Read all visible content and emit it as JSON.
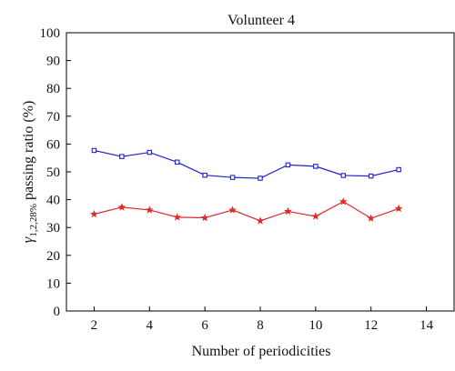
{
  "chart_data": {
    "type": "line",
    "title": "Volunteer 4",
    "xlabel": "Number of periodicities",
    "ylabel": {
      "symbol": "γ",
      "subscript": "1,2,28%",
      "text": " passing ratio (%)"
    },
    "xlim": [
      1,
      15
    ],
    "ylim": [
      0,
      100
    ],
    "xticks": [
      2,
      4,
      6,
      8,
      10,
      12,
      14
    ],
    "yticks": [
      0,
      10,
      20,
      30,
      40,
      50,
      60,
      70,
      80,
      90,
      100
    ],
    "grid": false,
    "x": [
      2,
      3,
      4,
      5,
      6,
      7,
      8,
      9,
      10,
      11,
      12,
      13
    ],
    "series": [
      {
        "color": "#1f1fd1",
        "marker": "square",
        "values": [
          57.7,
          55.5,
          57.0,
          53.5,
          48.8,
          48.0,
          47.7,
          52.5,
          52.0,
          48.7,
          48.5,
          50.8
        ]
      },
      {
        "color": "#dd2b2b",
        "marker": "star",
        "values": [
          34.8,
          37.3,
          36.3,
          33.7,
          33.5,
          36.3,
          32.4,
          35.8,
          34.0,
          39.3,
          33.3,
          36.8
        ]
      }
    ]
  }
}
